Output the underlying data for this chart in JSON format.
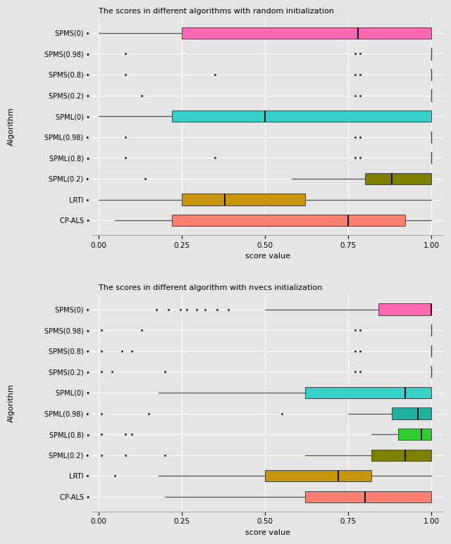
{
  "top_title": "The scores in different algorithms with random initialization",
  "bottom_title": "The scores in different algorithm with nvecs initialization",
  "ylabel": "Algorithm",
  "xlabel": "score value",
  "background_color": "#e5e5e5",
  "algorithms": [
    "SPMS(0)",
    "SPMS(0.98)",
    "SPMS(0.8)",
    "SPMS(0.2)",
    "SPML(0)",
    "SPML(0.98)",
    "SPML(0.8)",
    "SPML(0.2)",
    "LRTI",
    "CP-ALS"
  ],
  "top_boxes": {
    "SPMS(0)": {
      "q1": 0.25,
      "median": 0.78,
      "q3": 1.0,
      "whislo": 0.0,
      "whishi": 1.0,
      "fliers": [],
      "color": "#FF69B4",
      "has_box": true
    },
    "SPMS(0.98)": {
      "q1": 1.0,
      "median": 1.0,
      "q3": 1.0,
      "whislo": 1.0,
      "whishi": 1.0,
      "fliers": [
        0.08,
        0.77,
        0.785
      ],
      "color": null,
      "has_box": false
    },
    "SPMS(0.8)": {
      "q1": 1.0,
      "median": 1.0,
      "q3": 1.0,
      "whislo": 1.0,
      "whishi": 1.0,
      "fliers": [
        0.08,
        0.35,
        0.77,
        0.785
      ],
      "color": null,
      "has_box": false
    },
    "SPMS(0.2)": {
      "q1": 1.0,
      "median": 1.0,
      "q3": 1.0,
      "whislo": 1.0,
      "whishi": 1.0,
      "fliers": [
        0.13,
        0.77,
        0.785
      ],
      "color": null,
      "has_box": false
    },
    "SPML(0)": {
      "q1": 0.22,
      "median": 0.5,
      "q3": 1.0,
      "whislo": 0.0,
      "whishi": 1.0,
      "fliers": [],
      "color": "#36CFC9",
      "has_box": true
    },
    "SPML(0.98)": {
      "q1": 1.0,
      "median": 1.0,
      "q3": 1.0,
      "whislo": 1.0,
      "whishi": 1.0,
      "fliers": [
        0.08,
        0.77,
        0.785
      ],
      "color": null,
      "has_box": false
    },
    "SPML(0.8)": {
      "q1": 1.0,
      "median": 1.0,
      "q3": 1.0,
      "whislo": 1.0,
      "whishi": 1.0,
      "fliers": [
        0.08,
        0.35,
        0.77,
        0.785
      ],
      "color": null,
      "has_box": false
    },
    "SPML(0.2)": {
      "q1": 0.8,
      "median": 0.88,
      "q3": 1.0,
      "whislo": 0.58,
      "whishi": 1.0,
      "fliers": [
        0.14
      ],
      "color": "#808000",
      "has_box": true
    },
    "LRTI": {
      "q1": 0.25,
      "median": 0.38,
      "q3": 0.62,
      "whislo": 0.0,
      "whishi": 1.0,
      "fliers": [],
      "color": "#C8960C",
      "has_box": true
    },
    "CP-ALS": {
      "q1": 0.22,
      "median": 0.75,
      "q3": 0.92,
      "whislo": 0.05,
      "whishi": 1.0,
      "fliers": [],
      "color": "#FA8072",
      "has_box": true
    }
  },
  "bottom_boxes": {
    "SPMS(0)": {
      "q1": 0.84,
      "median": 1.0,
      "q3": 1.0,
      "whislo": 0.5,
      "whishi": 1.0,
      "fliers": [
        0.175,
        0.21,
        0.245,
        0.265,
        0.295,
        0.32,
        0.355,
        0.39
      ],
      "color": "#FF69B4",
      "has_box": true
    },
    "SPMS(0.98)": {
      "q1": 1.0,
      "median": 1.0,
      "q3": 1.0,
      "whislo": 1.0,
      "whishi": 1.0,
      "fliers": [
        0.01,
        0.13,
        0.77,
        0.785
      ],
      "color": null,
      "has_box": false
    },
    "SPMS(0.8)": {
      "q1": 1.0,
      "median": 1.0,
      "q3": 1.0,
      "whislo": 1.0,
      "whishi": 1.0,
      "fliers": [
        0.01,
        0.07,
        0.1,
        0.77,
        0.785
      ],
      "color": null,
      "has_box": false
    },
    "SPMS(0.2)": {
      "q1": 1.0,
      "median": 1.0,
      "q3": 1.0,
      "whislo": 1.0,
      "whishi": 1.0,
      "fliers": [
        0.01,
        0.04,
        0.2,
        0.77,
        0.785
      ],
      "color": null,
      "has_box": false
    },
    "SPML(0)": {
      "q1": 0.62,
      "median": 0.92,
      "q3": 1.0,
      "whislo": 0.18,
      "whishi": 1.0,
      "fliers": [],
      "color": "#36CFC9",
      "has_box": true
    },
    "SPML(0.98)": {
      "q1": 0.88,
      "median": 0.96,
      "q3": 1.0,
      "whislo": 0.75,
      "whishi": 1.0,
      "fliers": [
        0.01,
        0.15,
        0.55
      ],
      "color": "#20B2A0",
      "has_box": true
    },
    "SPML(0.8)": {
      "q1": 0.9,
      "median": 0.97,
      "q3": 1.0,
      "whislo": 0.82,
      "whishi": 1.0,
      "fliers": [
        0.01,
        0.08,
        0.1
      ],
      "color": "#32CD32",
      "has_box": true
    },
    "SPML(0.2)": {
      "q1": 0.82,
      "median": 0.92,
      "q3": 1.0,
      "whislo": 0.62,
      "whishi": 1.0,
      "fliers": [
        0.01,
        0.08,
        0.2
      ],
      "color": "#808000",
      "has_box": true
    },
    "LRTI": {
      "q1": 0.5,
      "median": 0.72,
      "q3": 0.82,
      "whislo": 0.18,
      "whishi": 1.0,
      "fliers": [
        0.05
      ],
      "color": "#C8960C",
      "has_box": true
    },
    "CP-ALS": {
      "q1": 0.62,
      "median": 0.8,
      "q3": 1.0,
      "whislo": 0.2,
      "whishi": 1.0,
      "fliers": [],
      "color": "#FA8072",
      "has_box": true
    }
  }
}
